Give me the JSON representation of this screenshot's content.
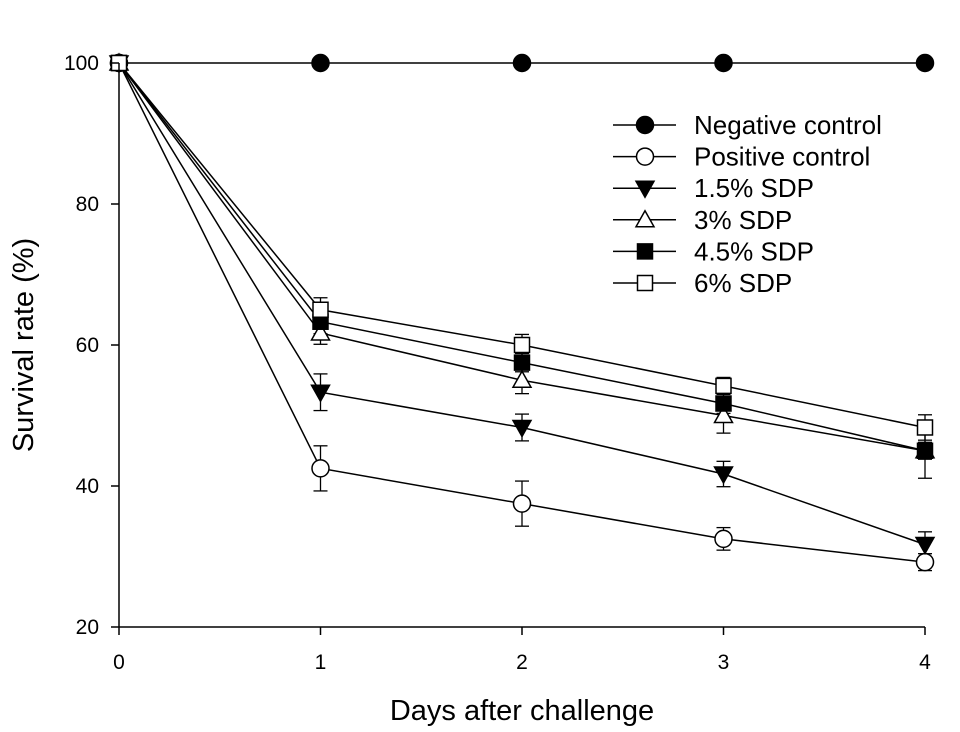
{
  "chart_data": {
    "type": "line",
    "title": "",
    "xlabel": "Days after challenge",
    "ylabel": "Survival rate (%)",
    "x": [
      0,
      1,
      2,
      3,
      4
    ],
    "xlim": [
      0,
      4
    ],
    "ylim": [
      20,
      100
    ],
    "xticks": [
      "0",
      "1",
      "2",
      "3",
      "4"
    ],
    "yticks": [
      "20",
      "40",
      "60",
      "80",
      "100"
    ],
    "grid": false,
    "legend_position": "top-right",
    "series": [
      {
        "name": "Negative control",
        "marker": "filled-circle",
        "values": [
          100,
          100,
          100,
          100,
          100
        ],
        "errors": [
          0,
          0,
          0,
          0,
          0
        ]
      },
      {
        "name": "Positive control",
        "marker": "open-circle",
        "values": [
          100,
          42.5,
          37.5,
          32.5,
          29.2
        ],
        "errors": [
          0,
          3.2,
          3.2,
          1.6,
          1.2
        ]
      },
      {
        "name": "1.5% SDP",
        "marker": "filled-triangle-down",
        "values": [
          100,
          53.3,
          48.3,
          41.7,
          31.7
        ],
        "errors": [
          0,
          2.6,
          1.9,
          1.8,
          1.8
        ]
      },
      {
        "name": "3% SDP",
        "marker": "open-triangle-up",
        "values": [
          100,
          61.7,
          55.0,
          50.0,
          45.0
        ],
        "errors": [
          0,
          1.6,
          1.9,
          2.5,
          3.9
        ]
      },
      {
        "name": "4.5% SDP",
        "marker": "filled-square",
        "values": [
          100,
          63.3,
          57.5,
          51.7,
          45.0
        ],
        "errors": [
          0,
          1.7,
          1.3,
          1.4,
          1.2
        ]
      },
      {
        "name": "6% SDP",
        "marker": "open-square",
        "values": [
          100,
          65.0,
          60.0,
          54.2,
          48.3
        ],
        "errors": [
          0,
          1.7,
          1.5,
          1.2,
          1.8
        ]
      }
    ]
  }
}
